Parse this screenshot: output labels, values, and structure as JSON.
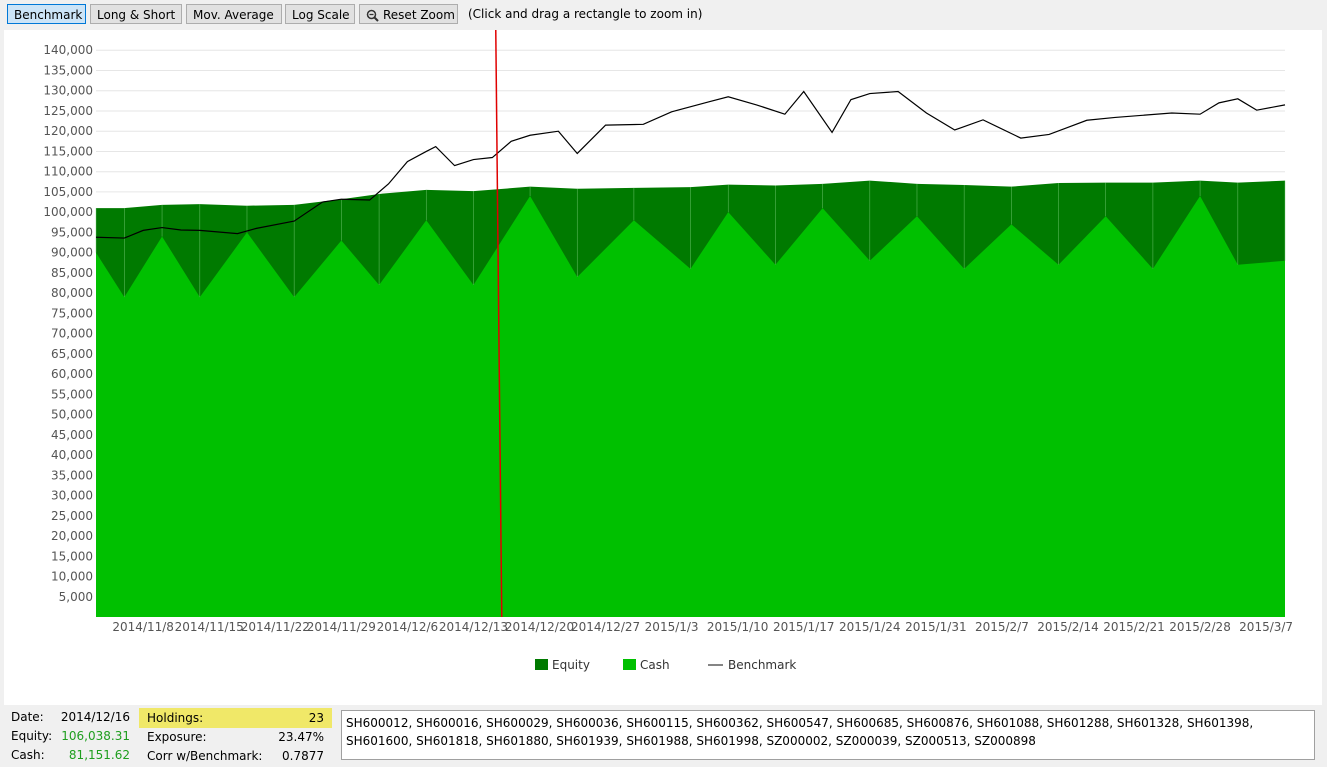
{
  "toolbar": {
    "benchmark": "Benchmark",
    "long_short": "Long & Short",
    "mov_average": "Mov. Average",
    "log_scale": "Log Scale",
    "reset_zoom": "Reset Zoom",
    "hint": "(Click and drag a rectangle to zoom in)",
    "reset_zoom_icon": "zoom-out-magnifier-icon"
  },
  "colors": {
    "equity": "#007a00",
    "cash": "#00c000",
    "benchmark": "#000000",
    "cursor": "#e00000",
    "holdings_highlight": "#f0e868"
  },
  "chart_data": {
    "type": "area",
    "grid": "horizontal",
    "ylim": [
      0,
      145000
    ],
    "y_ticks": [
      "5,000",
      "10,000",
      "15,000",
      "20,000",
      "25,000",
      "30,000",
      "35,000",
      "40,000",
      "45,000",
      "50,000",
      "55,000",
      "60,000",
      "65,000",
      "70,000",
      "75,000",
      "80,000",
      "85,000",
      "90,000",
      "95,000",
      "100,000",
      "105,000",
      "110,000",
      "115,000",
      "120,000",
      "125,000",
      "130,000",
      "135,000",
      "140,000"
    ],
    "x_ticks": [
      "2014/11/8",
      "2014/11/15",
      "2014/11/22",
      "2014/11/29",
      "2014/12/6",
      "2014/12/13",
      "2014/12/20",
      "2014/12/27",
      "2015/1/3",
      "2015/1/10",
      "2015/1/17",
      "2015/1/24",
      "2015/1/31",
      "2015/2/7",
      "2015/2/14",
      "2015/2/21",
      "2015/2/28",
      "2015/3/7"
    ],
    "x_range": [
      "2014/11/3",
      "2015/3/9"
    ],
    "cursor_date": "2014/12/16",
    "legend_position": "bottom",
    "legend": [
      "Equity",
      "Cash",
      "Benchmark"
    ],
    "series": [
      {
        "name": "Equity",
        "dates": [
          "2014/11/3",
          "2014/11/6",
          "2014/11/10",
          "2014/11/14",
          "2014/11/19",
          "2014/11/24",
          "2014/11/29",
          "2014/12/3",
          "2014/12/8",
          "2014/12/13",
          "2014/12/19",
          "2014/12/24",
          "2014/12/30",
          "2015/1/5",
          "2015/1/9",
          "2015/1/14",
          "2015/1/19",
          "2015/1/24",
          "2015/1/29",
          "2015/2/3",
          "2015/2/8",
          "2015/2/13",
          "2015/2/18",
          "2015/2/23",
          "2015/2/28",
          "2015/3/4",
          "2015/3/9"
        ],
        "values": [
          101000,
          101000,
          101800,
          102000,
          101600,
          101800,
          103200,
          104500,
          105500,
          105200,
          106300,
          105800,
          106000,
          106200,
          106800,
          106600,
          107000,
          107800,
          107000,
          106700,
          106300,
          107200,
          107300,
          107300,
          107800,
          107300,
          107800
        ]
      },
      {
        "name": "Cash",
        "dates": [
          "2014/11/3",
          "2014/11/6",
          "2014/11/10",
          "2014/11/14",
          "2014/11/19",
          "2014/11/24",
          "2014/11/29",
          "2014/12/3",
          "2014/12/8",
          "2014/12/13",
          "2014/12/19",
          "2014/12/24",
          "2014/12/30",
          "2015/1/5",
          "2015/1/9",
          "2015/1/14",
          "2015/1/19",
          "2015/1/24",
          "2015/1/29",
          "2015/2/3",
          "2015/2/8",
          "2015/2/13",
          "2015/2/18",
          "2015/2/23",
          "2015/2/28",
          "2015/3/4",
          "2015/3/9"
        ],
        "values": [
          90000,
          79000,
          94000,
          79000,
          95000,
          79000,
          93000,
          82000,
          98000,
          82000,
          104000,
          84000,
          98000,
          86000,
          100000,
          87000,
          101000,
          88000,
          99000,
          86000,
          97000,
          87000,
          99000,
          86000,
          104000,
          87000,
          88000
        ]
      },
      {
        "name": "Benchmark",
        "dates": [
          "2014/11/3",
          "2014/11/6",
          "2014/11/8",
          "2014/11/10",
          "2014/11/12",
          "2014/11/14",
          "2014/11/18",
          "2014/11/20",
          "2014/11/24",
          "2014/11/27",
          "2014/11/29",
          "2014/12/2",
          "2014/12/4",
          "2014/12/6",
          "2014/12/8",
          "2014/12/9",
          "2014/12/11",
          "2014/12/13",
          "2014/12/15",
          "2014/12/17",
          "2014/12/19",
          "2014/12/22",
          "2014/12/24",
          "2014/12/27",
          "2014/12/31",
          "2015/1/3",
          "2015/1/7",
          "2015/1/9",
          "2015/1/12",
          "2015/1/15",
          "2015/1/17",
          "2015/1/20",
          "2015/1/22",
          "2015/1/24",
          "2015/1/27",
          "2015/1/30",
          "2015/2/2",
          "2015/2/5",
          "2015/2/9",
          "2015/2/12",
          "2015/2/16",
          "2015/2/19",
          "2015/2/25",
          "2015/2/28",
          "2015/3/2",
          "2015/3/4",
          "2015/3/6",
          "2015/3/9"
        ],
        "values": [
          93800,
          93600,
          95500,
          96200,
          95600,
          95500,
          94700,
          96000,
          97800,
          102500,
          103200,
          103000,
          107000,
          112500,
          115000,
          116200,
          111500,
          113000,
          113500,
          117500,
          119000,
          120000,
          114500,
          121500,
          121700,
          124800,
          127300,
          128500,
          126500,
          124200,
          129800,
          119700,
          127800,
          129300,
          129800,
          124500,
          120300,
          122800,
          118300,
          119200,
          122700,
          123400,
          124500,
          124200,
          127000,
          128000,
          125200,
          126500
        ]
      }
    ]
  },
  "stats": {
    "date_label": "Date:",
    "date_value": "2014/12/16",
    "equity_label": "Equity:",
    "equity_value": "106,038.31",
    "cash_label": "Cash:",
    "cash_value": "81,151.62",
    "holdings_label": "Holdings:",
    "holdings_value": "23",
    "exposure_label": "Exposure:",
    "exposure_value": "23.47%",
    "corr_label": "Corr w/Benchmark:",
    "corr_value": "0.7877"
  },
  "holdings_list": "SH600012, SH600016, SH600029, SH600036, SH600115, SH600362, SH600547, SH600685, SH600876, SH601088, SH601288, SH601328, SH601398, SH601600, SH601818, SH601880, SH601939, SH601988, SH601998, SZ000002, SZ000039, SZ000513, SZ000898"
}
